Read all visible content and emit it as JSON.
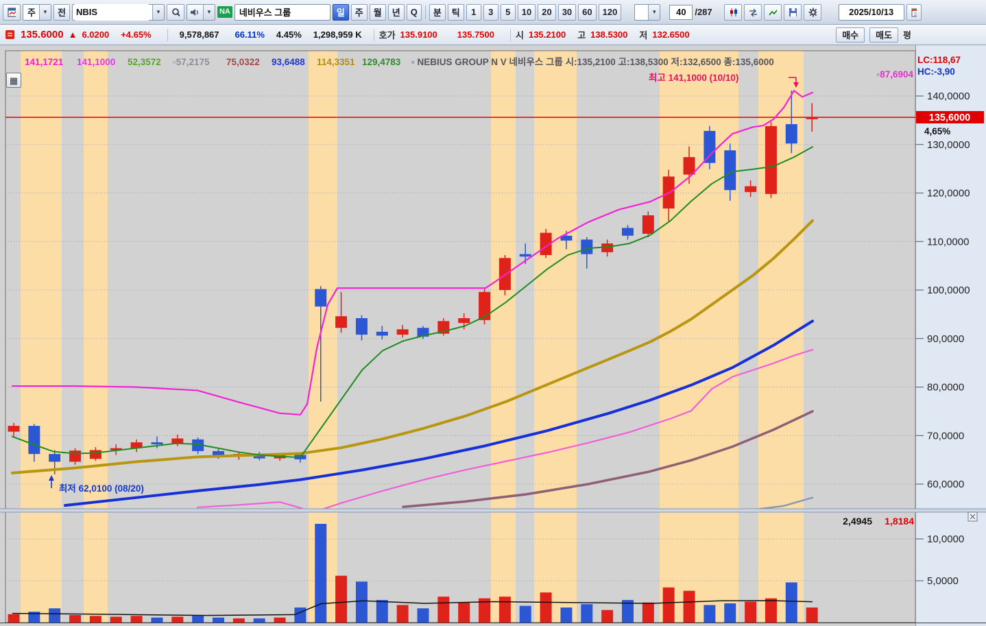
{
  "toolbar": {
    "period_combo": "주",
    "prev_button": "전",
    "symbol_input": "NBIS",
    "stock_badge": "NA",
    "stock_name": "네비우스 그룹",
    "timeframes": [
      "일",
      "주",
      "월",
      "년",
      "Q"
    ],
    "active_timeframe": "일",
    "modes": [
      "분",
      "틱"
    ],
    "intervals": [
      "1",
      "3",
      "5",
      "10",
      "20",
      "30",
      "60",
      "120"
    ],
    "position_value": "40",
    "position_total": "/287",
    "date_value": "2025/10/13"
  },
  "quote": {
    "price": "135.6000",
    "arrow": "▲",
    "change": "6.0200",
    "change_pct": "+4.65%",
    "volume": "9,578,867",
    "ratio1": "66.11%",
    "ratio2": "4.45%",
    "value": "1,298,959 K",
    "hoga_label": "호가",
    "ask": "135.9100",
    "bid": "135.7500",
    "open_label": "시",
    "open": "135.2100",
    "high_label": "고",
    "high": "138.5300",
    "low_label": "저",
    "low": "132.6500",
    "buy_button": "매수",
    "sell_button": "매도",
    "avg_label": "평"
  },
  "chart_data": {
    "type": "candlestick",
    "symbol": "NBIS",
    "title": "NEBIUS GROUP N V  네비우스 그룹",
    "title_ohlc": "시:135,2100 고:138,5300 저:132,6500 종:135,6000",
    "legend": [
      {
        "text": "141,1721",
        "color": "#f41fd2"
      },
      {
        "text": "141,1000",
        "color": "#e23ae2"
      },
      {
        "text": "52,3572",
        "color": "#58a428"
      },
      {
        "text": "▫57,2175",
        "color": "#8a8f98"
      },
      {
        "text": "75,0322",
        "color": "#a04848"
      },
      {
        "text": "93,6488",
        "color": "#2238d8"
      },
      {
        "text": "114,3351",
        "color": "#b08d18"
      },
      {
        "text": "129,4783",
        "color": "#2e8c2e"
      }
    ],
    "lc_label": "LC:118,67",
    "hc_label": "HC:-3,90",
    "right_band_value": "▫87,6904",
    "current_price": 135.6,
    "current_price_label": "135,6000",
    "current_pct_label": "4,65%",
    "annotation_high": "최고 141,1000 (10/10)",
    "annotation_low": "최저 62,0100 (08/20)",
    "price_ticks": [
      {
        "value": 140,
        "label": "140,0000"
      },
      {
        "value": 130,
        "label": "130,0000"
      },
      {
        "value": 120,
        "label": "120,0000"
      },
      {
        "value": 110,
        "label": "110,0000"
      },
      {
        "value": 100,
        "label": "100,0000"
      },
      {
        "value": 90,
        "label": "90,0000"
      },
      {
        "value": 80,
        "label": "80,0000"
      },
      {
        "value": 70,
        "label": "70,0000"
      },
      {
        "value": 60,
        "label": "60,0000"
      }
    ],
    "volume_ticks": [
      {
        "value": 10,
        "label": "10,0000"
      },
      {
        "value": 5,
        "label": "5,0000"
      }
    ],
    "volume_ma_label": "2,4945",
    "volume_current_label": "1,8184",
    "candles": [
      [
        70.8,
        72.6,
        69.6,
        72.0
      ],
      [
        72.0,
        72.4,
        64.6,
        66.2
      ],
      [
        66.2,
        67.0,
        62.0,
        64.6
      ],
      [
        64.6,
        67.4,
        64.0,
        66.9
      ],
      [
        65.2,
        67.6,
        64.8,
        67.0
      ],
      [
        67.0,
        68.2,
        66.0,
        67.4
      ],
      [
        67.4,
        69.2,
        66.6,
        68.6
      ],
      [
        68.6,
        69.8,
        67.4,
        68.2
      ],
      [
        68.4,
        70.2,
        67.8,
        69.4
      ],
      [
        69.2,
        69.6,
        66.2,
        66.8
      ],
      [
        66.8,
        67.2,
        65.2,
        65.8
      ],
      [
        65.8,
        66.6,
        65.0,
        66.2
      ],
      [
        66.2,
        66.6,
        64.9,
        65.3
      ],
      [
        65.3,
        66.4,
        64.8,
        66.0
      ],
      [
        66.0,
        66.3,
        64.4,
        65.1
      ],
      [
        100.2,
        100.8,
        77.0,
        96.6
      ],
      [
        92.2,
        99.6,
        91.2,
        94.6
      ],
      [
        94.2,
        94.8,
        89.6,
        90.8
      ],
      [
        91.4,
        92.6,
        89.8,
        90.6
      ],
      [
        90.8,
        92.8,
        90.2,
        91.9
      ],
      [
        92.2,
        92.6,
        89.9,
        90.4
      ],
      [
        91.0,
        94.2,
        90.6,
        93.6
      ],
      [
        93.2,
        95.2,
        91.9,
        94.2
      ],
      [
        93.8,
        100.2,
        92.9,
        99.6
      ],
      [
        100.0,
        107.2,
        98.9,
        106.6
      ],
      [
        107.4,
        109.6,
        105.4,
        106.9
      ],
      [
        107.2,
        112.6,
        106.6,
        111.8
      ],
      [
        111.2,
        112.2,
        108.4,
        110.2
      ],
      [
        110.4,
        110.9,
        104.4,
        107.4
      ],
      [
        107.8,
        110.4,
        106.9,
        109.6
      ],
      [
        112.8,
        113.4,
        110.4,
        111.2
      ],
      [
        111.6,
        116.2,
        110.9,
        115.4
      ],
      [
        116.8,
        124.8,
        114.2,
        123.4
      ],
      [
        123.8,
        129.6,
        121.9,
        127.4
      ],
      [
        132.8,
        133.8,
        124.9,
        126.2
      ],
      [
        128.8,
        130.2,
        118.4,
        120.6
      ],
      [
        120.2,
        122.6,
        119.2,
        121.4
      ],
      [
        119.8,
        134.6,
        119.0,
        133.8
      ],
      [
        134.2,
        141.1,
        128.2,
        130.2
      ],
      [
        135.21,
        138.53,
        132.65,
        135.6
      ]
    ],
    "volumes": [
      1.0,
      1.3,
      1.7,
      0.9,
      0.8,
      0.7,
      0.8,
      0.6,
      0.7,
      0.8,
      0.6,
      0.5,
      0.5,
      0.6,
      1.8,
      11.8,
      5.6,
      4.9,
      2.7,
      2.1,
      1.7,
      3.1,
      2.4,
      2.9,
      3.1,
      2.0,
      3.6,
      1.8,
      2.2,
      1.5,
      2.7,
      2.4,
      4.2,
      3.8,
      2.1,
      2.3,
      2.5,
      2.9,
      4.8,
      1.8
    ],
    "volume_ma_points": [
      [
        18,
        1.1
      ],
      [
        140,
        1.0
      ],
      [
        300,
        0.85
      ],
      [
        430,
        0.95
      ],
      [
        468,
        2.25
      ],
      [
        530,
        2.6
      ],
      [
        620,
        2.3
      ],
      [
        720,
        2.5
      ],
      [
        830,
        2.4
      ],
      [
        950,
        2.3
      ],
      [
        1050,
        2.6
      ],
      [
        1125,
        2.62
      ],
      [
        1185,
        2.49
      ]
    ],
    "ma_lines": [
      {
        "name": "envelope-upper-line",
        "color": "#f322d2",
        "width": 2.2,
        "points": [
          [
            18,
            80.2
          ],
          [
            108,
            80.2
          ],
          [
            198,
            80.0
          ],
          [
            288,
            79.3
          ],
          [
            348,
            76.9
          ],
          [
            408,
            74.6
          ],
          [
            438,
            74.3
          ],
          [
            448,
            76.5
          ],
          [
            462,
            88.0
          ],
          [
            478,
            97.0
          ],
          [
            492,
            100.4
          ],
          [
            708,
            100.4
          ],
          [
            723,
            101.8
          ],
          [
            768,
            106.2
          ],
          [
            813,
            110.6
          ],
          [
            858,
            114.0
          ],
          [
            903,
            116.6
          ],
          [
            948,
            118.2
          ],
          [
            978,
            120.2
          ],
          [
            1008,
            123.6
          ],
          [
            1038,
            128.2
          ],
          [
            1068,
            132.2
          ],
          [
            1098,
            133.6
          ],
          [
            1113,
            133.9
          ],
          [
            1128,
            135.2
          ],
          [
            1143,
            137.6
          ],
          [
            1158,
            141.1
          ],
          [
            1170,
            139.8
          ],
          [
            1185,
            140.7
          ]
        ]
      },
      {
        "name": "envelope-lower-line",
        "color": "#f05fd8",
        "width": 2.2,
        "points": [
          [
            288,
            55.2
          ],
          [
            348,
            55.7
          ],
          [
            408,
            56.3
          ],
          [
            438,
            55.1
          ],
          [
            452,
            54.3
          ],
          [
            468,
            54.7
          ],
          [
            498,
            56.1
          ],
          [
            558,
            58.6
          ],
          [
            618,
            60.9
          ],
          [
            678,
            62.9
          ],
          [
            738,
            64.7
          ],
          [
            798,
            66.5
          ],
          [
            858,
            68.5
          ],
          [
            918,
            70.7
          ],
          [
            978,
            73.5
          ],
          [
            1008,
            75.1
          ],
          [
            1038,
            79.6
          ],
          [
            1068,
            82.1
          ],
          [
            1098,
            83.5
          ],
          [
            1128,
            84.9
          ],
          [
            1158,
            86.5
          ],
          [
            1185,
            87.7
          ]
        ]
      },
      {
        "name": "ma-mauve-line",
        "color": "#8f5f75",
        "width": 3.5,
        "points": [
          [
            588,
            55.3
          ],
          [
            678,
            56.4
          ],
          [
            768,
            57.9
          ],
          [
            858,
            60.0
          ],
          [
            948,
            62.6
          ],
          [
            1008,
            64.9
          ],
          [
            1068,
            67.7
          ],
          [
            1128,
            71.2
          ],
          [
            1185,
            75.0
          ]
        ]
      },
      {
        "name": "ma-gray-line",
        "color": "#8d97ad",
        "width": 2.5,
        "points": [
          [
            1098,
            54.7
          ],
          [
            1143,
            55.5
          ],
          [
            1185,
            57.2
          ]
        ]
      },
      {
        "name": "ma-slow-blue-line",
        "color": "#1530d8",
        "width": 4,
        "points": [
          [
            95,
            55.6
          ],
          [
            198,
            57.2
          ],
          [
            288,
            58.6
          ],
          [
            378,
            59.9
          ],
          [
            438,
            60.9
          ],
          [
            528,
            62.9
          ],
          [
            618,
            65.2
          ],
          [
            708,
            67.9
          ],
          [
            798,
            71.0
          ],
          [
            888,
            74.6
          ],
          [
            948,
            77.3
          ],
          [
            1008,
            80.4
          ],
          [
            1068,
            84.0
          ],
          [
            1128,
            88.6
          ],
          [
            1185,
            93.6
          ]
        ]
      },
      {
        "name": "ma-mid-olive-line",
        "color": "#b8960f",
        "width": 4,
        "points": [
          [
            18,
            62.3
          ],
          [
            108,
            63.3
          ],
          [
            198,
            64.6
          ],
          [
            288,
            65.6
          ],
          [
            378,
            66.0
          ],
          [
            438,
            66.3
          ],
          [
            498,
            67.5
          ],
          [
            558,
            69.3
          ],
          [
            618,
            71.5
          ],
          [
            678,
            74.0
          ],
          [
            738,
            77.0
          ],
          [
            798,
            80.5
          ],
          [
            858,
            84.0
          ],
          [
            918,
            87.5
          ],
          [
            948,
            89.3
          ],
          [
            978,
            91.5
          ],
          [
            1008,
            94.0
          ],
          [
            1038,
            97.0
          ],
          [
            1068,
            100.0
          ],
          [
            1098,
            103.0
          ],
          [
            1128,
            106.5
          ],
          [
            1158,
            110.5
          ],
          [
            1185,
            114.3
          ]
        ]
      },
      {
        "name": "ma-fast-green-line",
        "color": "#1e8c1e",
        "width": 2,
        "points": [
          [
            18,
            69.8
          ],
          [
            48,
            68.2
          ],
          [
            78,
            66.7
          ],
          [
            108,
            66.3
          ],
          [
            138,
            66.4
          ],
          [
            168,
            66.9
          ],
          [
            198,
            67.4
          ],
          [
            228,
            67.9
          ],
          [
            258,
            68.4
          ],
          [
            288,
            68.2
          ],
          [
            318,
            67.4
          ],
          [
            348,
            66.6
          ],
          [
            378,
            66.0
          ],
          [
            408,
            65.7
          ],
          [
            438,
            65.5
          ],
          [
            468,
            71.5
          ],
          [
            498,
            77.5
          ],
          [
            528,
            83.5
          ],
          [
            558,
            87.5
          ],
          [
            588,
            89.5
          ],
          [
            618,
            90.6
          ],
          [
            648,
            91.5
          ],
          [
            678,
            92.6
          ],
          [
            708,
            94.6
          ],
          [
            738,
            97.5
          ],
          [
            768,
            100.9
          ],
          [
            798,
            104.3
          ],
          [
            828,
            107.2
          ],
          [
            858,
            108.6
          ],
          [
            888,
            108.9
          ],
          [
            918,
            109.6
          ],
          [
            948,
            111.3
          ],
          [
            978,
            114.3
          ],
          [
            1008,
            118.3
          ],
          [
            1038,
            121.9
          ],
          [
            1068,
            124.4
          ],
          [
            1098,
            124.9
          ],
          [
            1128,
            125.5
          ],
          [
            1158,
            127.4
          ],
          [
            1185,
            129.5
          ]
        ]
      }
    ],
    "bands": [
      [
        30,
        90
      ],
      [
        122,
        157
      ],
      [
        450,
        492
      ],
      [
        716,
        752
      ],
      [
        779,
        841
      ],
      [
        962,
        1077
      ],
      [
        1106,
        1172
      ]
    ],
    "colors": {
      "up": "#e0231a",
      "down": "#2b57d5",
      "band": "#fcdda6",
      "grid": "#9a9a9a",
      "bg": "#d2d2d2",
      "axis_bg": "#e0e8f4",
      "price_line": "#e00000",
      "tag_bg": "#e00000"
    }
  }
}
